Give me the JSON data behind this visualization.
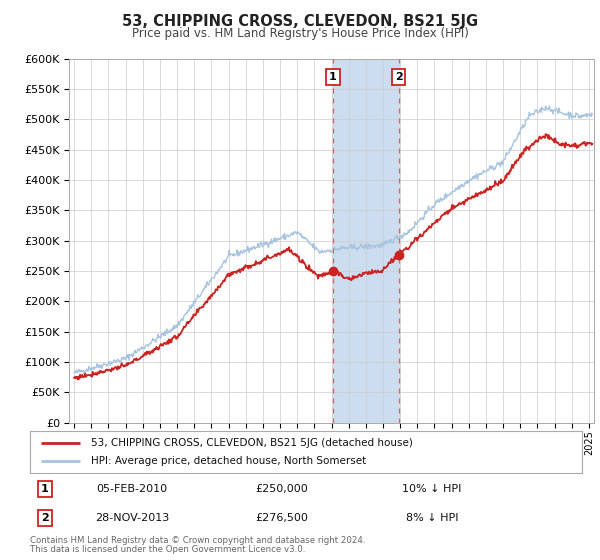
{
  "title": "53, CHIPPING CROSS, CLEVEDON, BS21 5JG",
  "subtitle": "Price paid vs. HM Land Registry's House Price Index (HPI)",
  "legend_line1": "53, CHIPPING CROSS, CLEVEDON, BS21 5JG (detached house)",
  "legend_line2": "HPI: Average price, detached house, North Somerset",
  "sale1_label": "1",
  "sale1_date": "05-FEB-2010",
  "sale1_price": "£250,000",
  "sale1_hpi": "10% ↓ HPI",
  "sale1_year": 2010.09,
  "sale1_value": 250000,
  "sale2_label": "2",
  "sale2_date": "28-NOV-2013",
  "sale2_price": "£276,500",
  "sale2_hpi": "8% ↓ HPI",
  "sale2_year": 2013.91,
  "sale2_value": 276500,
  "footer1": "Contains HM Land Registry data © Crown copyright and database right 2024.",
  "footer2": "This data is licensed under the Open Government Licence v3.0.",
  "ylim": [
    0,
    600000
  ],
  "yticks": [
    0,
    50000,
    100000,
    150000,
    200000,
    250000,
    300000,
    350000,
    400000,
    450000,
    500000,
    550000,
    600000
  ],
  "hpi_color": "#a8c4e0",
  "price_color": "#cc2222",
  "background_color": "#ffffff",
  "grid_color": "#cccccc",
  "shade_color": "#ccddf0",
  "vline_color": "#dd4444",
  "xlim_left": 1994.7,
  "xlim_right": 2025.3
}
